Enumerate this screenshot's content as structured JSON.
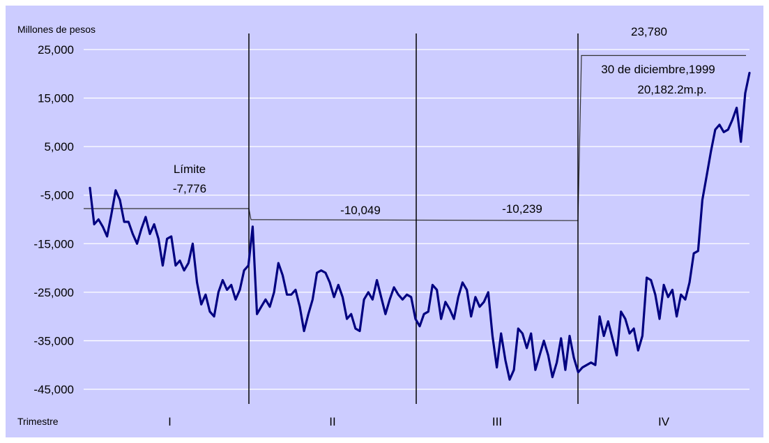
{
  "chart_data": {
    "type": "line",
    "ylabel": "Millones de pesos",
    "xlabel": "Trimestre",
    "ylim": [
      -45000,
      25000
    ],
    "yticks": [
      25000,
      15000,
      5000,
      -5000,
      -15000,
      -25000,
      -35000,
      -45000
    ],
    "ytick_labels": [
      "25,000",
      "15,000",
      "5,000",
      "-5,000",
      "-15,000",
      "-25,000",
      "-35,000",
      "-45,000"
    ],
    "grid": true,
    "quarters": [
      "I",
      "II",
      "III",
      "IV"
    ],
    "colors": {
      "line": "#000080",
      "background": "#ccccff",
      "grid": "#ffffff"
    },
    "series": [
      {
        "values": [
          -3500,
          -11000,
          -10000,
          -11500,
          -13500,
          -9000,
          -4000,
          -6000,
          -10500,
          -10500,
          -13000,
          -15000,
          -12000,
          -9500,
          -13000,
          -11000,
          -14000,
          -19500,
          -14000,
          -13500,
          -19500,
          -18500,
          -20500,
          -19000,
          -15000,
          -23000,
          -27500,
          -25500,
          -29000,
          -30000,
          -25000,
          -22500,
          -24500,
          -23500,
          -26500,
          -24500,
          -20500,
          -19500,
          -11500,
          -29500,
          -28000,
          -26500,
          -28000,
          -25000,
          -19000,
          -21500,
          -25500,
          -25500,
          -24500,
          -28000,
          -33000,
          -29500,
          -26500,
          -21000,
          -20500,
          -21000,
          -23000,
          -26000,
          -23500,
          -26000,
          -30500,
          -29500,
          -32500,
          -33000,
          -26500,
          -25000,
          -26500,
          -22500,
          -26000,
          -29500,
          -26500,
          -24000,
          -25500,
          -26500,
          -25500,
          -26000,
          -30500,
          -32000,
          -29500,
          -29000,
          -23500,
          -24500,
          -30500,
          -27000,
          -28500,
          -30500,
          -26000,
          -23000,
          -24500,
          -30000,
          -26000,
          -28000,
          -27000,
          -25000,
          -34000,
          -40500,
          -33500,
          -39000,
          -43000,
          -41000,
          -32500,
          -33500,
          -36500,
          -33500,
          -41000,
          -38000,
          -35000,
          -38000,
          -42500,
          -39500,
          -34500,
          -41000,
          -34000,
          -38500,
          -41500,
          -40500,
          -40000,
          -39500,
          -40000,
          -30000,
          -34000,
          -31000,
          -34500,
          -38000,
          -29000,
          -30500,
          -33500,
          -32500,
          -37000,
          -34000,
          -22000,
          -22500,
          -25500,
          -30500,
          -23500,
          -26000,
          -24500,
          -30000,
          -25500,
          -26500,
          -23000,
          -17000,
          -16500,
          -6000,
          -1000,
          4000,
          8500,
          9500,
          8000,
          8500,
          10500,
          13000,
          6000,
          16000,
          20182
        ]
      }
    ],
    "annotations": {
      "limit_title": "Límite",
      "limit_q1_label": "-7,776",
      "limit_q1": -7776,
      "limit_q2_label": "-10,049",
      "limit_q2": -10049,
      "limit_q3_label": "-10,239",
      "limit_q3": -10239,
      "limit_q4_label": "23,780",
      "limit_q4": 23780,
      "final_date": "30 de diciembre,1999",
      "final_value": "20,182.2m.p."
    }
  }
}
